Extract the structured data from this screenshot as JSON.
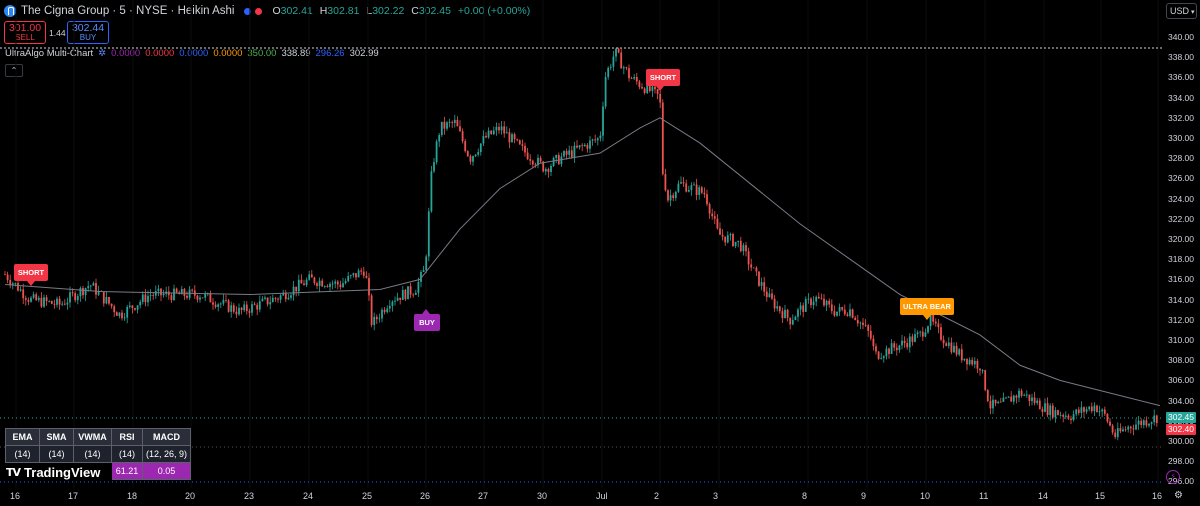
{
  "header": {
    "symbol_title": "The Cigna Group · 5 · NYSE · Heikin Ashi",
    "ohlc": {
      "o_label": "O",
      "o": "302.41",
      "h_label": "H",
      "h": "302.81",
      "l_label": "L",
      "l": "302.22",
      "c_label": "C",
      "c": "302.45",
      "change": "+0.00 (+0.00%)"
    },
    "currency": "USD"
  },
  "trade": {
    "sell_price": "301.00",
    "sell_label": "SELL",
    "spread": "1.44",
    "buy_price": "302.44",
    "buy_label": "BUY"
  },
  "indicator": {
    "name": "UltraAlgo Multi-Chart",
    "values": [
      {
        "text": "0.0000",
        "color": "#9c27b0"
      },
      {
        "text": "0.0000",
        "color": "#f23645"
      },
      {
        "text": "0.0000",
        "color": "#2962ff"
      },
      {
        "text": "0.0000",
        "color": "#ff9800"
      },
      {
        "text": "350.00",
        "color": "#4caf50"
      },
      {
        "text": "338.89",
        "color": "#d1d4dc"
      },
      {
        "text": "296.26",
        "color": "#2962ff"
      },
      {
        "text": "302.99",
        "color": "#d1d4dc"
      }
    ]
  },
  "price_axis": {
    "labels": [
      "340.00",
      "338.00",
      "336.00",
      "334.00",
      "332.00",
      "330.00",
      "328.00",
      "326.00",
      "324.00",
      "322.00",
      "320.00",
      "318.00",
      "316.00",
      "314.00",
      "312.00",
      "310.00",
      "308.00",
      "306.00",
      "304.00",
      "302.00",
      "300.00",
      "298.00",
      "296.00"
    ],
    "last_price": "302.45",
    "indicator_price": "302.40"
  },
  "time_axis": {
    "labels": [
      "16",
      "17",
      "18",
      "20",
      "23",
      "24",
      "25",
      "26",
      "27",
      "30",
      "Jul",
      "2",
      "3",
      "8",
      "9",
      "10",
      "11",
      "14",
      "15",
      "16"
    ]
  },
  "signals": [
    {
      "label": "SHORT",
      "color": "#f23645"
    },
    {
      "label": "BUY",
      "color": "#9c27b0"
    },
    {
      "label": "SHORT",
      "color": "#f23645"
    },
    {
      "label": "ULTRA BEAR",
      "color": "#ff9800"
    }
  ],
  "table": {
    "headers": [
      "EMA",
      "SMA",
      "VWMA",
      "RSI",
      "MACD"
    ],
    "params": [
      "(14)",
      "(14)",
      "(14)",
      "(14)",
      "(12, 26, 9)"
    ],
    "values": [
      "",
      "",
      "",
      "61.21",
      "0.05"
    ]
  },
  "branding": "TradingView",
  "colors": {
    "up": "#26a69a",
    "down": "#ef5350",
    "ma": "#787b86"
  }
}
